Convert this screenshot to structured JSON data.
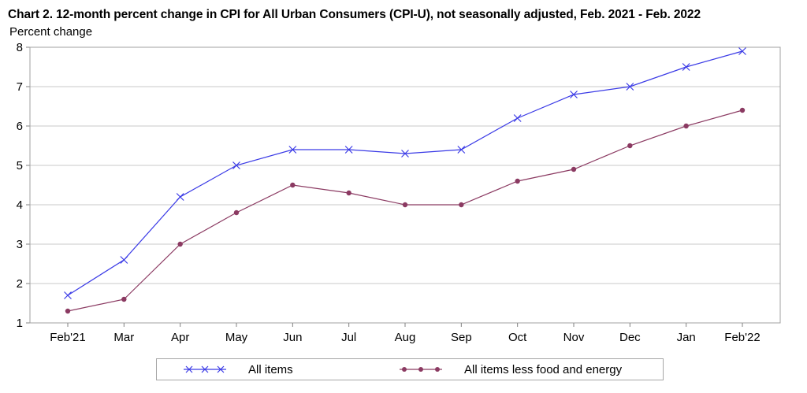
{
  "chart_data": {
    "type": "line",
    "title": "Chart 2. 12-month percent change in CPI for All Urban Consumers (CPI-U), not seasonally adjusted, Feb. 2021 - Feb. 2022",
    "ylabel": "Percent change",
    "xlabel": "",
    "categories": [
      "Feb'21",
      "Mar",
      "Apr",
      "May",
      "Jun",
      "Jul",
      "Aug",
      "Sep",
      "Oct",
      "Nov",
      "Dec",
      "Jan",
      "Feb'22"
    ],
    "ylim": [
      1,
      8
    ],
    "yticks": [
      1,
      2,
      3,
      4,
      5,
      6,
      7,
      8
    ],
    "grid": "horizontal",
    "legend": "bottom",
    "series": [
      {
        "name": "All items",
        "marker": "x",
        "color": "#3a3ae6",
        "values": [
          1.7,
          2.6,
          4.2,
          5.0,
          5.4,
          5.4,
          5.3,
          5.4,
          6.2,
          6.8,
          7.0,
          7.5,
          7.9
        ]
      },
      {
        "name": "All items less food and energy",
        "marker": "circle",
        "color": "#8b3a62",
        "values": [
          1.3,
          1.6,
          3.0,
          3.8,
          4.5,
          4.3,
          4.0,
          4.0,
          4.6,
          4.9,
          5.5,
          6.0,
          6.4
        ]
      }
    ]
  }
}
